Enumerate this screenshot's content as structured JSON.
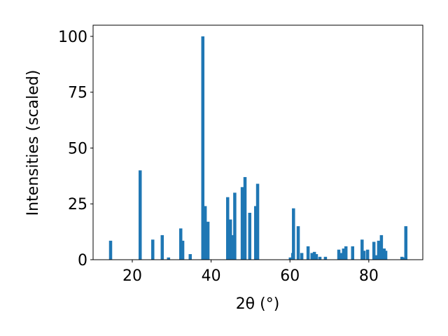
{
  "chart_data": {
    "type": "bar",
    "xlabel": "2θ (°)",
    "ylabel": "Intensities (scaled)",
    "x": [
      14.5,
      22.0,
      25.2,
      27.6,
      29.2,
      32.3,
      32.8,
      34.7,
      37.9,
      38.5,
      39.2,
      44.2,
      44.9,
      45.4,
      46.0,
      47.9,
      48.6,
      49.8,
      51.3,
      51.8,
      60.1,
      60.7,
      60.9,
      62.1,
      63.0,
      64.6,
      65.6,
      66.2,
      66.7,
      67.6,
      69.0,
      72.4,
      72.9,
      73.6,
      74.2,
      75.9,
      78.3,
      78.8,
      79.7,
      81.3,
      81.8,
      82.5,
      83.2,
      83.9,
      84.3,
      88.4,
      88.9,
      89.4
    ],
    "values": [
      8.5,
      40,
      9,
      11,
      1,
      14,
      8.5,
      2.5,
      100,
      24,
      17,
      28,
      18,
      11,
      30,
      32.5,
      37,
      21,
      24,
      34,
      1,
      3,
      23,
      15,
      3,
      6,
      3,
      3.5,
      2.5,
      1.3,
      1.3,
      4.5,
      3,
      5,
      6,
      6,
      9,
      4,
      4.5,
      8,
      2,
      8.5,
      11,
      5,
      4,
      1.3,
      1,
      15
    ],
    "color": "#1f77b4",
    "xlim": [
      10.06,
      93.7
    ],
    "ylim": [
      0,
      105
    ],
    "xticks": [
      20,
      40,
      60,
      80
    ],
    "yticks": [
      0,
      25,
      50,
      75,
      100
    ]
  }
}
